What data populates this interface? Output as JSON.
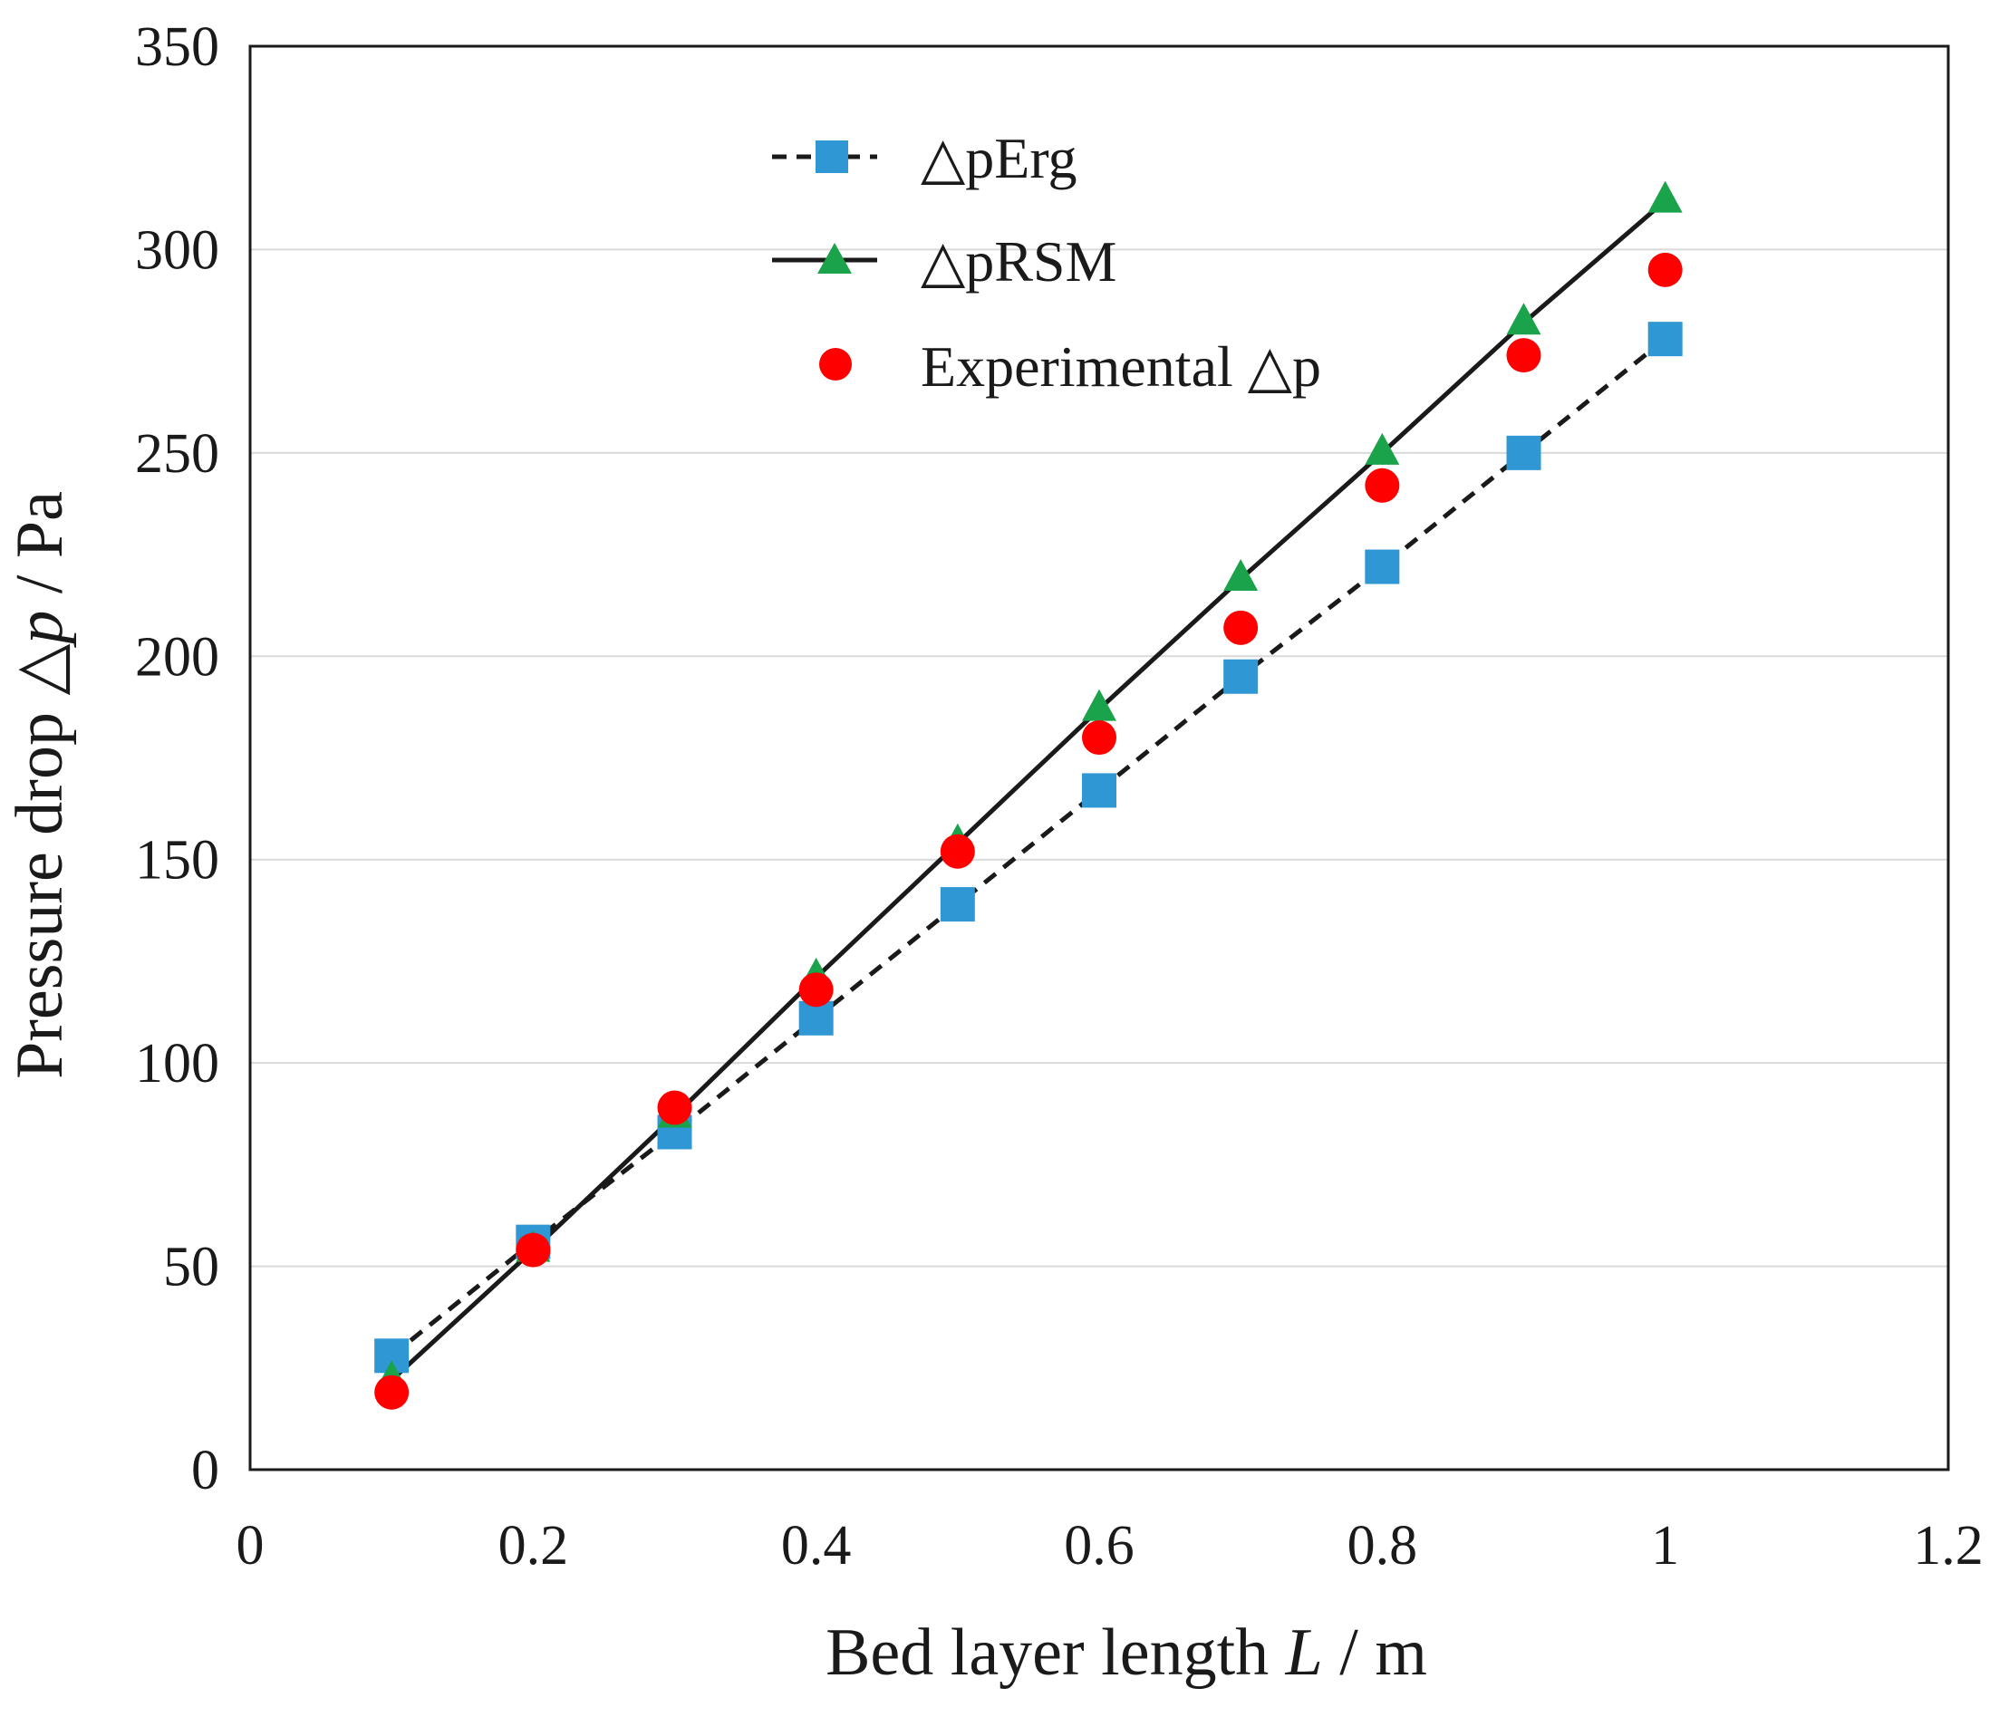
{
  "chart_data": {
    "type": "line",
    "title": "",
    "xlabel_prefix": "Bed layer length ",
    "xlabel_var": "L",
    "xlabel_suffix": " / m",
    "ylabel_prefix": "Pressure drop △",
    "ylabel_var": "p",
    "ylabel_suffix": " / Pa",
    "xlim": [
      0,
      1.2
    ],
    "ylim": [
      0,
      350
    ],
    "x_ticks": [
      0,
      0.2,
      0.4,
      0.6,
      0.8,
      1,
      1.2
    ],
    "x_tick_labels": [
      "0",
      "0.2",
      "0.4",
      "0.6",
      "0.8",
      "1",
      "1.2"
    ],
    "y_ticks": [
      0,
      50,
      100,
      150,
      200,
      250,
      300,
      350
    ],
    "y_tick_labels": [
      "0",
      "50",
      "100",
      "150",
      "200",
      "250",
      "300",
      "350"
    ],
    "grid": "horizontal",
    "legend_position": "top-center",
    "x": [
      0.1,
      0.2,
      0.3,
      0.4,
      0.5,
      0.6,
      0.7,
      0.8,
      0.9,
      1.0
    ],
    "series": [
      {
        "name": "△pErg",
        "marker": "square",
        "line": "dashed",
        "color": "#2f97d4",
        "values": [
          28,
          56,
          83,
          111,
          139,
          167,
          195,
          222,
          250,
          278
        ]
      },
      {
        "name": "△pRSM",
        "marker": "triangle",
        "line": "solid",
        "color": "#1aa34a",
        "values": [
          22,
          54,
          87,
          121,
          154,
          187,
          219,
          250,
          282,
          312
        ]
      },
      {
        "name": "Experimental △p",
        "marker": "circle",
        "line": "none",
        "color": "#ff0000",
        "values": [
          19,
          54,
          89,
          118,
          152,
          180,
          207,
          242,
          274,
          295
        ]
      }
    ]
  }
}
